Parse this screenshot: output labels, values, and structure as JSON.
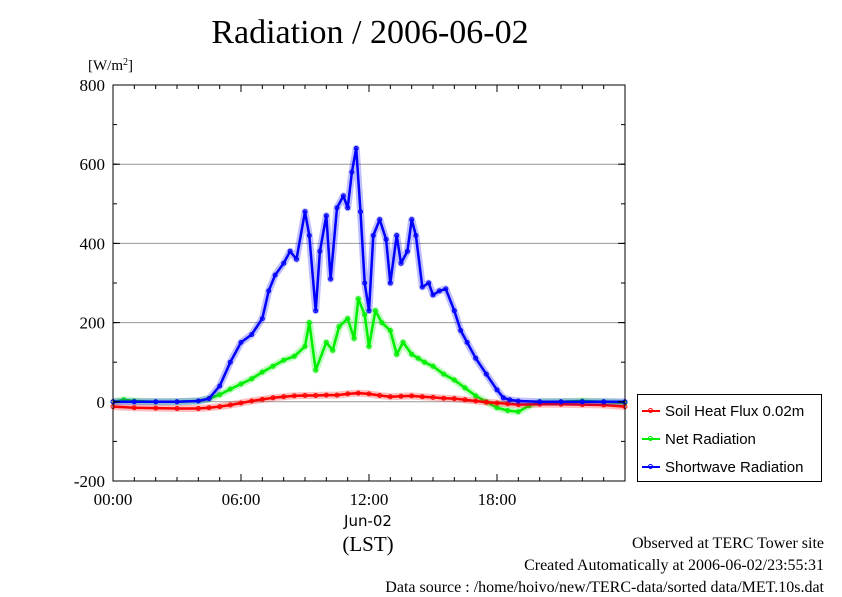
{
  "title": "Radiation / 2006-06-02",
  "chart_data": {
    "type": "line",
    "title": "Radiation / 2006-06-02",
    "yunit": "[W/m",
    "yunit_sup": "2",
    "yunit_close": "]",
    "xlabel_date": "Jun-02",
    "xlabel": "(LST)",
    "xlim": [
      0,
      24
    ],
    "ylim": [
      -200,
      800
    ],
    "xticks": [
      0,
      6,
      12,
      18
    ],
    "xtick_labels": [
      "00:00",
      "06:00",
      "12:00",
      "18:00"
    ],
    "yticks": [
      -200,
      0,
      200,
      400,
      600,
      800
    ],
    "ytick_labels": [
      "-200",
      "0",
      "200",
      "400",
      "600",
      "800"
    ],
    "grid": true,
    "legend_position": "right",
    "series": [
      {
        "name": "Soil Heat Flux 0.02m",
        "color": "#ff0000",
        "x": [
          0,
          1,
          2,
          3,
          4,
          4.5,
          5,
          5.5,
          6,
          6.5,
          7,
          7.5,
          8,
          8.5,
          9,
          9.5,
          10,
          10.5,
          11,
          11.5,
          12,
          12.5,
          13,
          13.5,
          14,
          14.5,
          15,
          15.5,
          16,
          16.5,
          17,
          17.5,
          18,
          18.5,
          19,
          20,
          21,
          22,
          23,
          24
        ],
        "y": [
          -12,
          -15,
          -16,
          -17,
          -17,
          -15,
          -12,
          -8,
          -3,
          2,
          6,
          10,
          13,
          15,
          16,
          16,
          17,
          17,
          20,
          22,
          20,
          16,
          13,
          14,
          15,
          13,
          11,
          9,
          8,
          5,
          2,
          -1,
          -3,
          -5,
          -7,
          -6,
          -6,
          -7,
          -8,
          -12
        ]
      },
      {
        "name": "Net Radiation",
        "color": "#00ee00",
        "x": [
          0,
          0.5,
          1,
          2,
          3,
          4,
          4.5,
          5,
          5.5,
          6,
          6.5,
          7,
          7.5,
          8,
          8.5,
          9,
          9.2,
          9.5,
          10,
          10.3,
          10.6,
          11,
          11.3,
          11.5,
          11.8,
          12,
          12.3,
          12.6,
          13,
          13.3,
          13.6,
          14,
          14.3,
          14.6,
          15,
          15.5,
          16,
          16.5,
          17,
          17.5,
          18,
          18.5,
          19,
          19.5,
          20,
          21,
          22,
          23,
          24
        ],
        "y": [
          0,
          5,
          2,
          0,
          0,
          2,
          8,
          18,
          32,
          45,
          58,
          75,
          90,
          105,
          115,
          140,
          200,
          80,
          150,
          130,
          190,
          210,
          160,
          260,
          220,
          140,
          230,
          200,
          180,
          120,
          150,
          120,
          110,
          100,
          90,
          70,
          55,
          35,
          15,
          0,
          -15,
          -22,
          -25,
          -10,
          0,
          0,
          2,
          0,
          -3
        ]
      },
      {
        "name": "Shortwave Radiation",
        "color": "#0000ff",
        "x": [
          0,
          1,
          2,
          3,
          4,
          4.5,
          5,
          5.5,
          6,
          6.5,
          7,
          7.3,
          7.6,
          8,
          8.3,
          8.6,
          9,
          9.2,
          9.5,
          9.7,
          10,
          10.2,
          10.5,
          10.8,
          11,
          11.2,
          11.4,
          11.6,
          11.8,
          12,
          12.2,
          12.5,
          12.8,
          13,
          13.3,
          13.5,
          13.8,
          14,
          14.2,
          14.5,
          14.8,
          15,
          15.3,
          15.6,
          16,
          16.3,
          16.6,
          17,
          17.5,
          18,
          18.3,
          18.6,
          19,
          20,
          21,
          22,
          23,
          24
        ],
        "y": [
          0,
          0,
          0,
          0,
          2,
          8,
          40,
          100,
          150,
          170,
          210,
          280,
          320,
          350,
          380,
          360,
          480,
          420,
          230,
          380,
          470,
          310,
          490,
          520,
          490,
          580,
          640,
          480,
          300,
          230,
          420,
          460,
          410,
          300,
          420,
          350,
          380,
          460,
          420,
          290,
          300,
          270,
          280,
          285,
          230,
          180,
          150,
          110,
          70,
          30,
          10,
          5,
          2,
          0,
          0,
          0,
          0,
          0
        ]
      }
    ]
  },
  "footer": {
    "line1": "Observed at TERC Tower site",
    "line2": "Created Automatically at 2006-06-02/23:55:31",
    "line3": "Data source : /home/hoivo/new/TERC-data/sorted  data/MET.10s.dat"
  }
}
